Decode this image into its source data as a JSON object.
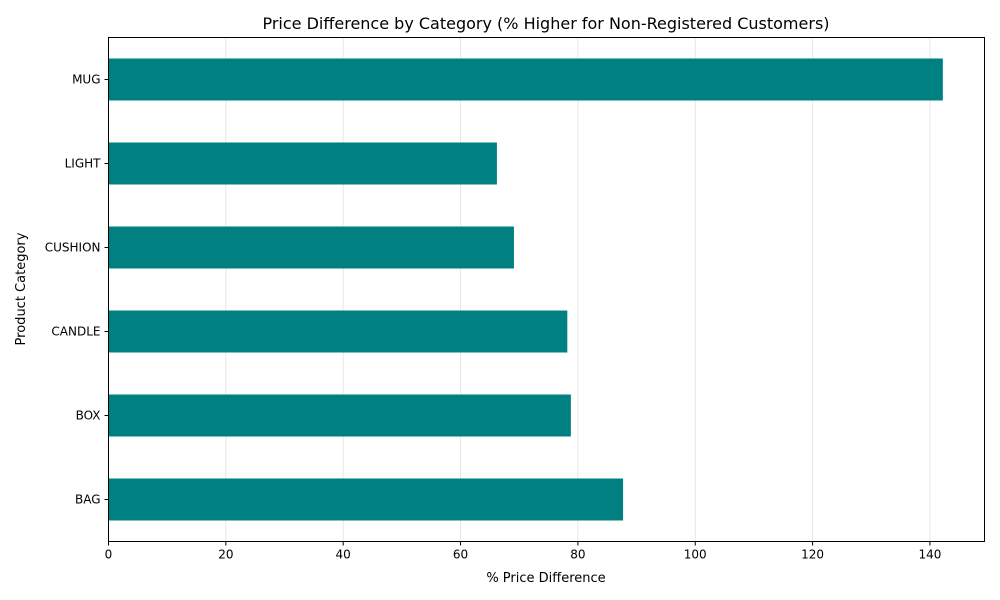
{
  "chart_data": {
    "type": "bar",
    "orientation": "horizontal",
    "title": "Price Difference by Category (% Higher for Non-Registered Customers)",
    "xlabel": "% Price Difference",
    "ylabel": "Product Category",
    "categories": [
      "BAG",
      "BOX",
      "CANDLE",
      "CUSHION",
      "LIGHT",
      "MUG"
    ],
    "values": [
      87.7,
      78.8,
      78.2,
      69.1,
      66.2,
      142.2
    ],
    "xlim": [
      0,
      149.3
    ],
    "xticks": [
      0,
      20,
      40,
      60,
      80,
      100,
      120,
      140
    ],
    "grid": "x",
    "bar_color": "#008080",
    "grid_color": "#e6e6e6"
  }
}
